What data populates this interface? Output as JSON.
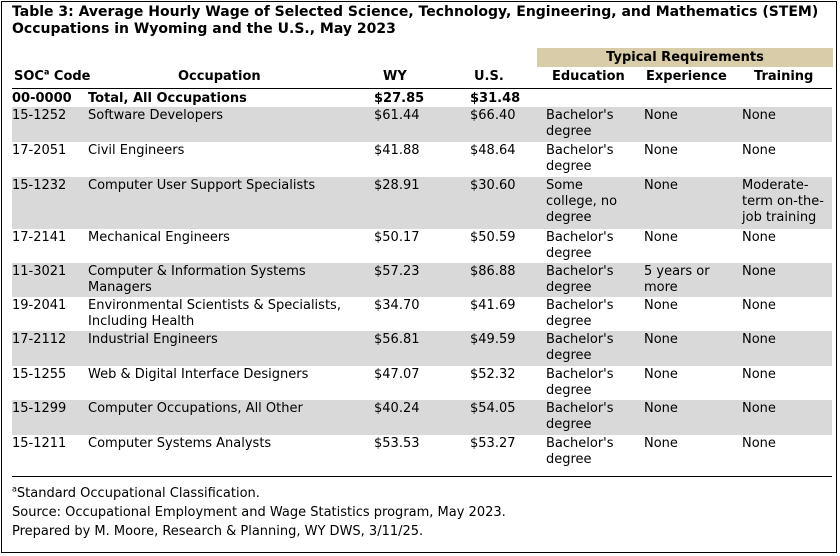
{
  "title": "Table 3: Average Hourly Wage of Selected Science, Technology, Engineering, and Mathematics (STEM) Occupations in Wyoming and the U.S., May 2023",
  "requirements_header": "Typical Requirements",
  "columns": {
    "soc": "SOC",
    "soc_sup": "a",
    "soc_suffix": " Code",
    "occupation": "Occupation",
    "wy": "WY",
    "us": "U.S.",
    "education": "Education",
    "experience": "Experience",
    "training": "Training"
  },
  "total": {
    "soc": "00-0000",
    "occupation": "Total, All Occupations",
    "wy": "$27.85",
    "us": "$31.48"
  },
  "rows": [
    {
      "soc": "15-1252",
      "occupation": "Software Developers",
      "wy": "$61.44",
      "us": "$66.40",
      "education": "Bachelor's degree",
      "experience": "None",
      "training": "None"
    },
    {
      "soc": "17-2051",
      "occupation": "Civil Engineers",
      "wy": "$41.88",
      "us": "$48.64",
      "education": "Bachelor's degree",
      "experience": "None",
      "training": "None"
    },
    {
      "soc": "15-1232",
      "occupation": "Computer User Support Specialists",
      "wy": "$28.91",
      "us": "$30.60",
      "education": "Some college, no degree",
      "experience": "None",
      "training": "Moderate-term on-the-job training"
    },
    {
      "soc": "17-2141",
      "occupation": "Mechanical Engineers",
      "wy": "$50.17",
      "us": "$50.59",
      "education": "Bachelor's degree",
      "experience": "None",
      "training": "None"
    },
    {
      "soc": "11-3021",
      "occupation": "Computer & Information Systems Managers",
      "wy": "$57.23",
      "us": "$86.88",
      "education": "Bachelor's degree",
      "experience": "5 years or more",
      "training": "None"
    },
    {
      "soc": "19-2041",
      "occupation": "Environmental Scientists & Specialists, Including Health",
      "wy": "$34.70",
      "us": "$41.69",
      "education": "Bachelor's degree",
      "experience": "None",
      "training": "None"
    },
    {
      "soc": "17-2112",
      "occupation": "Industrial Engineers",
      "wy": "$56.81",
      "us": "$49.59",
      "education": "Bachelor's degree",
      "experience": "None",
      "training": "None"
    },
    {
      "soc": "15-1255",
      "occupation": "Web & Digital Interface Designers",
      "wy": "$47.07",
      "us": "$52.32",
      "education": "Bachelor's degree",
      "experience": "None",
      "training": "None"
    },
    {
      "soc": "15-1299",
      "occupation": "Computer Occupations, All Other",
      "wy": "$40.24",
      "us": "$54.05",
      "education": "Bachelor's degree",
      "experience": "None",
      "training": "None"
    },
    {
      "soc": "15-1211",
      "occupation": "Computer Systems Analysts",
      "wy": "$53.53",
      "us": "$53.27",
      "education": "Bachelor's degree",
      "experience": "None",
      "training": "None"
    }
  ],
  "notes": {
    "footnote_sup": "a",
    "footnote_text": "Standard Occupational Classification.",
    "source": "Source: Occupational Employment and Wage Statistics program, May 2023.",
    "prepared": "Prepared by M. Moore, Research & Planning, WY DWS, 3/11/25."
  },
  "colors": {
    "row_shade": "#d9d9d9",
    "requirements_band": "#d9cca8"
  }
}
